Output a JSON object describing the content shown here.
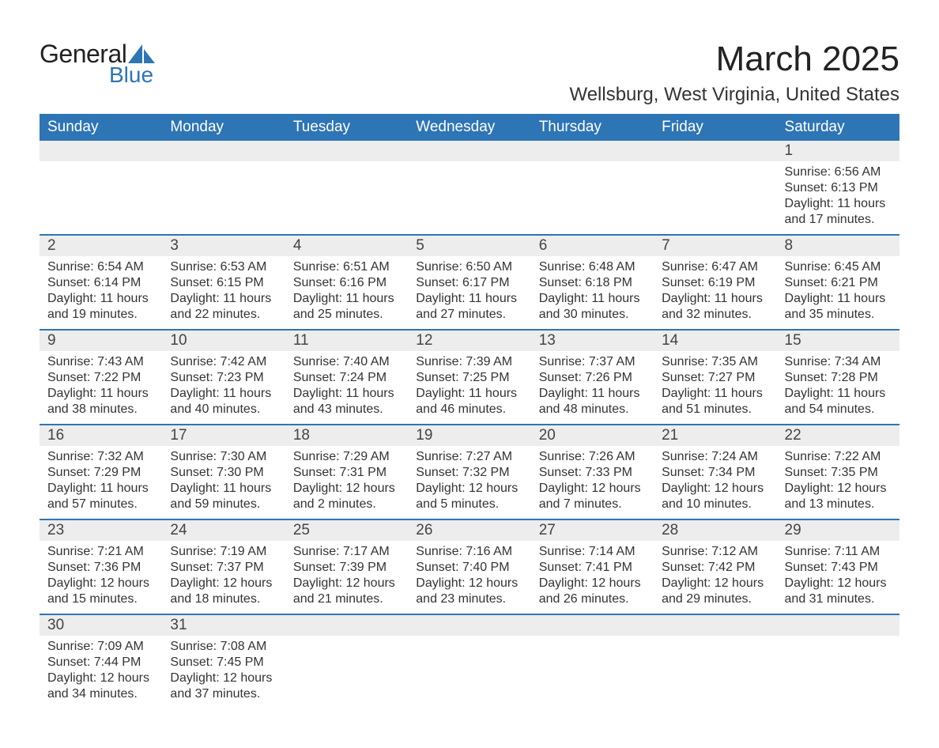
{
  "logo": {
    "text1": "General",
    "text2": "Blue",
    "shape_color": "#2e75b6"
  },
  "title": "March 2025",
  "location": "Wellsburg, West Virginia, United States",
  "colors": {
    "header_bg": "#2e75b6",
    "header_text": "#ffffff",
    "daynum_bg": "#ededed",
    "row_divider": "#2e75b6",
    "body_text": "#333333",
    "page_bg": "#ffffff"
  },
  "typography": {
    "title_fontsize": 44,
    "location_fontsize": 24,
    "header_fontsize": 19,
    "daynum_fontsize": 19,
    "detail_fontsize": 16
  },
  "day_headers": [
    "Sunday",
    "Monday",
    "Tuesday",
    "Wednesday",
    "Thursday",
    "Friday",
    "Saturday"
  ],
  "weeks": [
    {
      "days": [
        {
          "num": "",
          "lines": [
            "",
            "",
            "",
            ""
          ]
        },
        {
          "num": "",
          "lines": [
            "",
            "",
            "",
            ""
          ]
        },
        {
          "num": "",
          "lines": [
            "",
            "",
            "",
            ""
          ]
        },
        {
          "num": "",
          "lines": [
            "",
            "",
            "",
            ""
          ]
        },
        {
          "num": "",
          "lines": [
            "",
            "",
            "",
            ""
          ]
        },
        {
          "num": "",
          "lines": [
            "",
            "",
            "",
            ""
          ]
        },
        {
          "num": "1",
          "lines": [
            "Sunrise: 6:56 AM",
            "Sunset: 6:13 PM",
            "Daylight: 11 hours",
            "and 17 minutes."
          ]
        }
      ]
    },
    {
      "days": [
        {
          "num": "2",
          "lines": [
            "Sunrise: 6:54 AM",
            "Sunset: 6:14 PM",
            "Daylight: 11 hours",
            "and 19 minutes."
          ]
        },
        {
          "num": "3",
          "lines": [
            "Sunrise: 6:53 AM",
            "Sunset: 6:15 PM",
            "Daylight: 11 hours",
            "and 22 minutes."
          ]
        },
        {
          "num": "4",
          "lines": [
            "Sunrise: 6:51 AM",
            "Sunset: 6:16 PM",
            "Daylight: 11 hours",
            "and 25 minutes."
          ]
        },
        {
          "num": "5",
          "lines": [
            "Sunrise: 6:50 AM",
            "Sunset: 6:17 PM",
            "Daylight: 11 hours",
            "and 27 minutes."
          ]
        },
        {
          "num": "6",
          "lines": [
            "Sunrise: 6:48 AM",
            "Sunset: 6:18 PM",
            "Daylight: 11 hours",
            "and 30 minutes."
          ]
        },
        {
          "num": "7",
          "lines": [
            "Sunrise: 6:47 AM",
            "Sunset: 6:19 PM",
            "Daylight: 11 hours",
            "and 32 minutes."
          ]
        },
        {
          "num": "8",
          "lines": [
            "Sunrise: 6:45 AM",
            "Sunset: 6:21 PM",
            "Daylight: 11 hours",
            "and 35 minutes."
          ]
        }
      ]
    },
    {
      "days": [
        {
          "num": "9",
          "lines": [
            "Sunrise: 7:43 AM",
            "Sunset: 7:22 PM",
            "Daylight: 11 hours",
            "and 38 minutes."
          ]
        },
        {
          "num": "10",
          "lines": [
            "Sunrise: 7:42 AM",
            "Sunset: 7:23 PM",
            "Daylight: 11 hours",
            "and 40 minutes."
          ]
        },
        {
          "num": "11",
          "lines": [
            "Sunrise: 7:40 AM",
            "Sunset: 7:24 PM",
            "Daylight: 11 hours",
            "and 43 minutes."
          ]
        },
        {
          "num": "12",
          "lines": [
            "Sunrise: 7:39 AM",
            "Sunset: 7:25 PM",
            "Daylight: 11 hours",
            "and 46 minutes."
          ]
        },
        {
          "num": "13",
          "lines": [
            "Sunrise: 7:37 AM",
            "Sunset: 7:26 PM",
            "Daylight: 11 hours",
            "and 48 minutes."
          ]
        },
        {
          "num": "14",
          "lines": [
            "Sunrise: 7:35 AM",
            "Sunset: 7:27 PM",
            "Daylight: 11 hours",
            "and 51 minutes."
          ]
        },
        {
          "num": "15",
          "lines": [
            "Sunrise: 7:34 AM",
            "Sunset: 7:28 PM",
            "Daylight: 11 hours",
            "and 54 minutes."
          ]
        }
      ]
    },
    {
      "days": [
        {
          "num": "16",
          "lines": [
            "Sunrise: 7:32 AM",
            "Sunset: 7:29 PM",
            "Daylight: 11 hours",
            "and 57 minutes."
          ]
        },
        {
          "num": "17",
          "lines": [
            "Sunrise: 7:30 AM",
            "Sunset: 7:30 PM",
            "Daylight: 11 hours",
            "and 59 minutes."
          ]
        },
        {
          "num": "18",
          "lines": [
            "Sunrise: 7:29 AM",
            "Sunset: 7:31 PM",
            "Daylight: 12 hours",
            "and 2 minutes."
          ]
        },
        {
          "num": "19",
          "lines": [
            "Sunrise: 7:27 AM",
            "Sunset: 7:32 PM",
            "Daylight: 12 hours",
            "and 5 minutes."
          ]
        },
        {
          "num": "20",
          "lines": [
            "Sunrise: 7:26 AM",
            "Sunset: 7:33 PM",
            "Daylight: 12 hours",
            "and 7 minutes."
          ]
        },
        {
          "num": "21",
          "lines": [
            "Sunrise: 7:24 AM",
            "Sunset: 7:34 PM",
            "Daylight: 12 hours",
            "and 10 minutes."
          ]
        },
        {
          "num": "22",
          "lines": [
            "Sunrise: 7:22 AM",
            "Sunset: 7:35 PM",
            "Daylight: 12 hours",
            "and 13 minutes."
          ]
        }
      ]
    },
    {
      "days": [
        {
          "num": "23",
          "lines": [
            "Sunrise: 7:21 AM",
            "Sunset: 7:36 PM",
            "Daylight: 12 hours",
            "and 15 minutes."
          ]
        },
        {
          "num": "24",
          "lines": [
            "Sunrise: 7:19 AM",
            "Sunset: 7:37 PM",
            "Daylight: 12 hours",
            "and 18 minutes."
          ]
        },
        {
          "num": "25",
          "lines": [
            "Sunrise: 7:17 AM",
            "Sunset: 7:39 PM",
            "Daylight: 12 hours",
            "and 21 minutes."
          ]
        },
        {
          "num": "26",
          "lines": [
            "Sunrise: 7:16 AM",
            "Sunset: 7:40 PM",
            "Daylight: 12 hours",
            "and 23 minutes."
          ]
        },
        {
          "num": "27",
          "lines": [
            "Sunrise: 7:14 AM",
            "Sunset: 7:41 PM",
            "Daylight: 12 hours",
            "and 26 minutes."
          ]
        },
        {
          "num": "28",
          "lines": [
            "Sunrise: 7:12 AM",
            "Sunset: 7:42 PM",
            "Daylight: 12 hours",
            "and 29 minutes."
          ]
        },
        {
          "num": "29",
          "lines": [
            "Sunrise: 7:11 AM",
            "Sunset: 7:43 PM",
            "Daylight: 12 hours",
            "and 31 minutes."
          ]
        }
      ]
    },
    {
      "days": [
        {
          "num": "30",
          "lines": [
            "Sunrise: 7:09 AM",
            "Sunset: 7:44 PM",
            "Daylight: 12 hours",
            "and 34 minutes."
          ]
        },
        {
          "num": "31",
          "lines": [
            "Sunrise: 7:08 AM",
            "Sunset: 7:45 PM",
            "Daylight: 12 hours",
            "and 37 minutes."
          ]
        },
        {
          "num": "",
          "lines": [
            "",
            "",
            "",
            ""
          ]
        },
        {
          "num": "",
          "lines": [
            "",
            "",
            "",
            ""
          ]
        },
        {
          "num": "",
          "lines": [
            "",
            "",
            "",
            ""
          ]
        },
        {
          "num": "",
          "lines": [
            "",
            "",
            "",
            ""
          ]
        },
        {
          "num": "",
          "lines": [
            "",
            "",
            "",
            ""
          ]
        }
      ]
    }
  ]
}
